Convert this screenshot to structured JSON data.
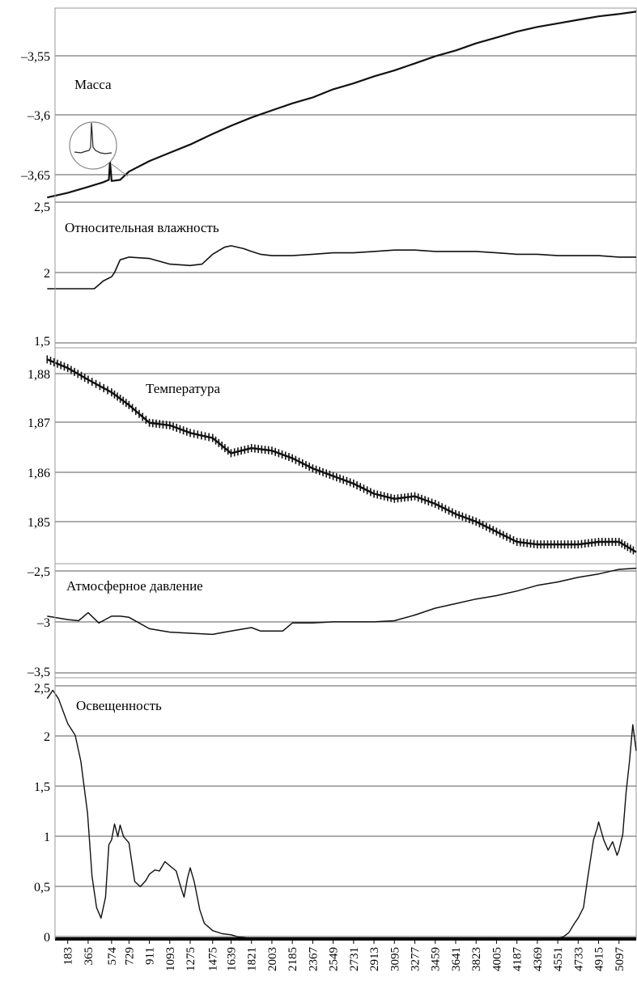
{
  "chart_data": [
    {
      "type": "line",
      "label": "Масса",
      "yticks": [
        "–3,55",
        "–3,6",
        "–3,65"
      ],
      "ylim": [
        -3.672,
        -3.507
      ],
      "grid": true,
      "inset": "circled magnified spike",
      "series": [
        {
          "x": [
            0,
            183,
            365,
            500,
            550,
            560,
            574,
            650,
            729,
            911,
            1093,
            1275,
            1475,
            1639,
            1821,
            2003,
            2185,
            2367,
            2549,
            2731,
            2913,
            3095,
            3277,
            3459,
            3641,
            3823,
            4005,
            4187,
            4369,
            4551,
            4733,
            4915,
            5097,
            5250
          ],
          "y": [
            -3.668,
            -3.664,
            -3.659,
            -3.655,
            -3.653,
            -3.637,
            -3.654,
            -3.653,
            -3.646,
            -3.637,
            -3.63,
            -3.623,
            -3.614,
            -3.607,
            -3.6,
            -3.594,
            -3.588,
            -3.583,
            -3.576,
            -3.571,
            -3.565,
            -3.56,
            -3.554,
            -3.548,
            -3.543,
            -3.537,
            -3.532,
            -3.527,
            -3.523,
            -3.52,
            -3.517,
            -3.514,
            -3.512,
            -3.51
          ]
        }
      ]
    },
    {
      "type": "line",
      "label": "Относительная влажность",
      "yticks": [
        "2,5",
        "2",
        "1,5"
      ],
      "ylim": [
        1.5,
        2.5
      ],
      "grid": true,
      "series": [
        {
          "x": [
            0,
            183,
            365,
            420,
            500,
            574,
            600,
            650,
            729,
            911,
            1093,
            1275,
            1380,
            1475,
            1580,
            1639,
            1750,
            1821,
            1900,
            2003,
            2185,
            2367,
            2549,
            2731,
            2913,
            3095,
            3277,
            3459,
            3641,
            3823,
            4005,
            4187,
            4369,
            4551,
            4733,
            4915,
            5097,
            5250
          ],
          "y": [
            1.885,
            1.885,
            1.885,
            1.885,
            1.94,
            1.97,
            2.0,
            2.09,
            2.11,
            2.1,
            2.06,
            2.05,
            2.06,
            2.13,
            2.18,
            2.19,
            2.17,
            2.15,
            2.13,
            2.12,
            2.12,
            2.13,
            2.14,
            2.14,
            2.15,
            2.16,
            2.16,
            2.15,
            2.15,
            2.15,
            2.14,
            2.13,
            2.13,
            2.12,
            2.12,
            2.12,
            2.11,
            2.11
          ]
        }
      ]
    },
    {
      "type": "line",
      "label": "Температура",
      "yticks": [
        "1,88",
        "1,87",
        "1,86",
        "1,85"
      ],
      "ylim": [
        1.8432,
        1.8858
      ],
      "grid": true,
      "series": [
        {
          "x": [
            0,
            183,
            365,
            574,
            729,
            911,
            1093,
            1275,
            1475,
            1639,
            1821,
            2003,
            2185,
            2367,
            2549,
            2731,
            2913,
            3095,
            3277,
            3459,
            3641,
            3823,
            4005,
            4187,
            4369,
            4551,
            4733,
            4915,
            5097,
            5250
          ],
          "y": [
            1.8835,
            1.8818,
            1.8795,
            1.877,
            1.8745,
            1.871,
            1.8705,
            1.869,
            1.868,
            1.865,
            1.866,
            1.8655,
            1.864,
            1.862,
            1.8605,
            1.859,
            1.857,
            1.856,
            1.8565,
            1.855,
            1.853,
            1.8515,
            1.8495,
            1.8475,
            1.847,
            1.847,
            1.847,
            1.8475,
            1.8475,
            1.8455
          ]
        }
      ]
    },
    {
      "type": "line",
      "label": "Атмосферное давление",
      "yticks": [
        "–2,5",
        "–3",
        "–3,5"
      ],
      "ylim": [
        -3.5,
        -2.5
      ],
      "grid": true,
      "series": [
        {
          "x": [
            0,
            183,
            280,
            365,
            460,
            574,
            650,
            729,
            911,
            1093,
            1275,
            1475,
            1639,
            1821,
            1900,
            2003,
            2100,
            2185,
            2367,
            2549,
            2731,
            2913,
            3095,
            3277,
            3459,
            3641,
            3823,
            4005,
            4187,
            4369,
            4551,
            4733,
            4915,
            5097,
            5250
          ],
          "y": [
            -2.96,
            -2.99,
            -3.0,
            -2.93,
            -3.02,
            -2.96,
            -2.96,
            -2.97,
            -3.07,
            -3.1,
            -3.11,
            -3.12,
            -3.09,
            -3.06,
            -3.09,
            -3.09,
            -3.09,
            -3.02,
            -3.02,
            -3.01,
            -3.01,
            -3.01,
            -3.0,
            -2.95,
            -2.89,
            -2.85,
            -2.81,
            -2.78,
            -2.74,
            -2.69,
            -2.66,
            -2.62,
            -2.59,
            -2.55,
            -2.54
          ]
        }
      ]
    },
    {
      "type": "line",
      "label": "Освещенность",
      "yticks": [
        "2,5",
        "2",
        "1,5",
        "1",
        "0,5",
        "0"
      ],
      "ylim": [
        0,
        2.5
      ],
      "grid": true,
      "xticks": [
        "183",
        "365",
        "574",
        "729",
        "911",
        "1093",
        "1275",
        "1475",
        "1639",
        "1821",
        "2003",
        "2185",
        "2367",
        "2549",
        "2731",
        "2913",
        "3095",
        "3277",
        "3459",
        "3641",
        "3823",
        "4005",
        "4187",
        "4369",
        "4551",
        "4733",
        "4915",
        "5097"
      ],
      "series": [
        {
          "x": [
            0,
            50,
            100,
            183,
            250,
            300,
            360,
            400,
            440,
            480,
            520,
            550,
            574,
            600,
            630,
            650,
            680,
            729,
            780,
            830,
            880,
            911,
            960,
            1000,
            1050,
            1093,
            1150,
            1190,
            1220,
            1250,
            1275,
            1310,
            1360,
            1400,
            1475,
            1560,
            1639,
            1700,
            1780,
            1821,
            2003,
            2185,
            2367,
            2549,
            2731,
            2913,
            3095,
            3277,
            3459,
            3641,
            3823,
            4005,
            4187,
            4369,
            4500,
            4551,
            4600,
            4650,
            4700,
            4733,
            4780,
            4820,
            4870,
            4900,
            4915,
            4960,
            5000,
            5040,
            5080,
            5097,
            5130,
            5160,
            5190,
            5220,
            5250
          ],
          "y": [
            2.3,
            2.38,
            2.3,
            2.06,
            1.95,
            1.7,
            1.2,
            0.6,
            0.3,
            0.2,
            0.4,
            0.9,
            0.95,
            1.1,
            0.98,
            1.09,
            0.98,
            0.92,
            0.55,
            0.5,
            0.56,
            0.62,
            0.66,
            0.65,
            0.74,
            0.7,
            0.65,
            0.5,
            0.4,
            0.58,
            0.68,
            0.55,
            0.28,
            0.15,
            0.08,
            0.05,
            0.04,
            0.02,
            0.01,
            0.0,
            0.0,
            0.0,
            0.0,
            0.0,
            0.0,
            0.0,
            0.0,
            0.0,
            0.0,
            0.0,
            0.0,
            0.0,
            0.0,
            0.0,
            0.0,
            0.0,
            0.02,
            0.06,
            0.15,
            0.2,
            0.3,
            0.6,
            0.95,
            1.05,
            1.12,
            0.95,
            0.85,
            0.93,
            0.8,
            0.85,
            1.0,
            1.4,
            1.7,
            2.05,
            1.8
          ]
        }
      ]
    }
  ],
  "x_domain": [
    70,
    5250
  ]
}
